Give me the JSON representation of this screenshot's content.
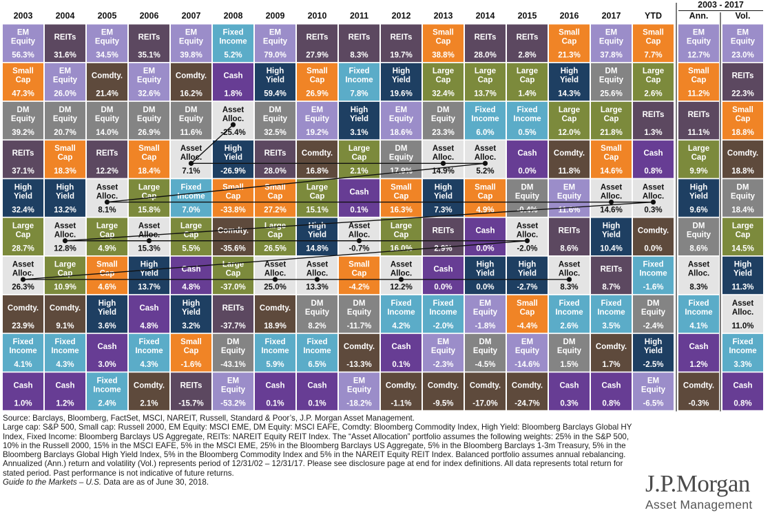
{
  "chart_data": {
    "type": "table",
    "columns": [
      "2003",
      "2004",
      "2005",
      "2006",
      "2007",
      "2008",
      "2009",
      "2010",
      "2011",
      "2012",
      "2013",
      "2014",
      "2015",
      "2016",
      "2017",
      "YTD"
    ],
    "summary_group_label": "2003 - 2017",
    "summary_columns": [
      "Ann.",
      "Vol."
    ],
    "asset_classes": {
      "EM": {
        "label": [
          "EM",
          "Equity"
        ],
        "color": "#9b8dc9"
      },
      "REIT": {
        "label": [
          "REITs"
        ],
        "color": "#5c4860"
      },
      "SC": {
        "label": [
          "Small",
          "Cap"
        ],
        "color": "#f08426"
      },
      "COM": {
        "label": [
          "Comdty."
        ],
        "color": "#5e4a3c"
      },
      "FI": {
        "label": [
          "Fixed",
          "Income"
        ],
        "color": "#5bacc8"
      },
      "CASH": {
        "label": [
          "Cash"
        ],
        "color": "#673d94"
      },
      "HY": {
        "label": [
          "High",
          "Yield"
        ],
        "color": "#1e3f62"
      },
      "DM": {
        "label": [
          "DM",
          "Equity"
        ],
        "color": "#848484"
      },
      "LC": {
        "label": [
          "Large",
          "Cap"
        ],
        "color": "#7c8a3c"
      },
      "AA": {
        "label": [
          "Asset",
          "Alloc."
        ],
        "color": "#e4e4e4"
      }
    },
    "rows": [
      [
        [
          "EM",
          "56.3%"
        ],
        [
          "REIT",
          "31.6%"
        ],
        [
          "EM",
          "34.5%"
        ],
        [
          "REIT",
          "35.1%"
        ],
        [
          "EM",
          "39.8%"
        ],
        [
          "FI",
          "5.2%"
        ],
        [
          "EM",
          "79.0%"
        ],
        [
          "REIT",
          "27.9%"
        ],
        [
          "REIT",
          "8.3%"
        ],
        [
          "REIT",
          "19.7%"
        ],
        [
          "SC",
          "38.8%"
        ],
        [
          "REIT",
          "28.0%"
        ],
        [
          "REIT",
          "2.8%"
        ],
        [
          "SC",
          "21.3%"
        ],
        [
          "EM",
          "37.8%"
        ],
        [
          "SC",
          "7.7%"
        ],
        [
          "EM",
          "12.7%"
        ],
        [
          "EM",
          "23.0%"
        ]
      ],
      [
        [
          "SC",
          "47.3%"
        ],
        [
          "EM",
          "26.0%"
        ],
        [
          "COM",
          "21.4%"
        ],
        [
          "EM",
          "32.6%"
        ],
        [
          "COM",
          "16.2%"
        ],
        [
          "CASH",
          "1.8%"
        ],
        [
          "HY",
          "59.4%"
        ],
        [
          "SC",
          "26.9%"
        ],
        [
          "FI",
          "7.8%"
        ],
        [
          "HY",
          "19.6%"
        ],
        [
          "LC",
          "32.4%"
        ],
        [
          "LC",
          "13.7%"
        ],
        [
          "LC",
          "1.4%"
        ],
        [
          "HY",
          "14.3%"
        ],
        [
          "DM",
          "25.6%"
        ],
        [
          "LC",
          "2.6%"
        ],
        [
          "SC",
          "11.2%"
        ],
        [
          "REIT",
          "22.3%"
        ]
      ],
      [
        [
          "DM",
          "39.2%"
        ],
        [
          "DM",
          "20.7%"
        ],
        [
          "DM",
          "14.0%"
        ],
        [
          "DM",
          "26.9%"
        ],
        [
          "DM",
          "11.6%"
        ],
        [
          "AA",
          "-25.4%"
        ],
        [
          "DM",
          "32.5%"
        ],
        [
          "EM",
          "19.2%"
        ],
        [
          "HY",
          "3.1%"
        ],
        [
          "EM",
          "18.6%"
        ],
        [
          "DM",
          "23.3%"
        ],
        [
          "FI",
          "6.0%"
        ],
        [
          "FI",
          "0.5%"
        ],
        [
          "LC",
          "12.0%"
        ],
        [
          "LC",
          "21.8%"
        ],
        [
          "REIT",
          "1.3%"
        ],
        [
          "REIT",
          "11.1%"
        ],
        [
          "SC",
          "18.8%"
        ]
      ],
      [
        [
          "REIT",
          "37.1%"
        ],
        [
          "SC",
          "18.3%"
        ],
        [
          "REIT",
          "12.2%"
        ],
        [
          "SC",
          "18.4%"
        ],
        [
          "AA",
          "7.1%"
        ],
        [
          "HY",
          "-26.9%"
        ],
        [
          "REIT",
          "28.0%"
        ],
        [
          "COM",
          "16.8%"
        ],
        [
          "LC",
          "2.1%"
        ],
        [
          "DM",
          "17.9%"
        ],
        [
          "AA",
          "14.9%"
        ],
        [
          "AA",
          "5.2%"
        ],
        [
          "CASH",
          "0.0%"
        ],
        [
          "COM",
          "11.8%"
        ],
        [
          "SC",
          "14.6%"
        ],
        [
          "CASH",
          "0.8%"
        ],
        [
          "LC",
          "9.9%"
        ],
        [
          "COM",
          "18.8%"
        ]
      ],
      [
        [
          "HY",
          "32.4%"
        ],
        [
          "HY",
          "13.2%"
        ],
        [
          "AA",
          "8.1%"
        ],
        [
          "LC",
          "15.8%"
        ],
        [
          "FI",
          "7.0%"
        ],
        [
          "SC",
          "-33.8%"
        ],
        [
          "SC",
          "27.2%"
        ],
        [
          "LC",
          "15.1%"
        ],
        [
          "CASH",
          "0.1%"
        ],
        [
          "SC",
          "16.3%"
        ],
        [
          "HY",
          "7.3%"
        ],
        [
          "SC",
          "4.9%"
        ],
        [
          "DM",
          "-0.4%"
        ],
        [
          "EM",
          "11.6%"
        ],
        [
          "AA",
          "14.6%"
        ],
        [
          "AA",
          "0.3%"
        ],
        [
          "HY",
          "9.6%"
        ],
        [
          "DM",
          "18.4%"
        ]
      ],
      [
        [
          "LC",
          "28.7%"
        ],
        [
          "AA",
          "12.8%"
        ],
        [
          "LC",
          "4.9%"
        ],
        [
          "AA",
          "15.3%"
        ],
        [
          "LC",
          "5.5%"
        ],
        [
          "COM",
          "-35.6%"
        ],
        [
          "LC",
          "26.5%"
        ],
        [
          "HY",
          "14.8%"
        ],
        [
          "AA",
          "-0.7%"
        ],
        [
          "LC",
          "16.0%"
        ],
        [
          "REIT",
          "2.9%"
        ],
        [
          "CASH",
          "0.0%"
        ],
        [
          "AA",
          "-2.0%"
        ],
        [
          "REIT",
          "8.6%"
        ],
        [
          "HY",
          "10.4%"
        ],
        [
          "COM",
          "0.0%"
        ],
        [
          "DM",
          "8.6%"
        ],
        [
          "LC",
          "14.5%"
        ]
      ],
      [
        [
          "AA",
          "26.3%"
        ],
        [
          "LC",
          "10.9%"
        ],
        [
          "SC",
          "4.6%"
        ],
        [
          "HY",
          "13.7%"
        ],
        [
          "CASH",
          "4.8%"
        ],
        [
          "LC",
          "-37.0%"
        ],
        [
          "AA",
          "25.0%"
        ],
        [
          "AA",
          "13.3%"
        ],
        [
          "SC",
          "-4.2%"
        ],
        [
          "AA",
          "12.2%"
        ],
        [
          "CASH",
          "0.0%"
        ],
        [
          "HY",
          "0.0%"
        ],
        [
          "HY",
          "-2.7%"
        ],
        [
          "AA",
          "8.3%"
        ],
        [
          "REIT",
          "8.7%"
        ],
        [
          "FI",
          "-1.6%"
        ],
        [
          "AA",
          "8.3%"
        ],
        [
          "HY",
          "11.3%"
        ]
      ],
      [
        [
          "COM",
          "23.9%"
        ],
        [
          "COM",
          "9.1%"
        ],
        [
          "HY",
          "3.6%"
        ],
        [
          "CASH",
          "4.8%"
        ],
        [
          "HY",
          "3.2%"
        ],
        [
          "REIT",
          "-37.7%"
        ],
        [
          "COM",
          "18.9%"
        ],
        [
          "DM",
          "8.2%"
        ],
        [
          "DM",
          "-11.7%"
        ],
        [
          "FI",
          "4.2%"
        ],
        [
          "FI",
          "-2.0%"
        ],
        [
          "EM",
          "-1.8%"
        ],
        [
          "SC",
          "-4.4%"
        ],
        [
          "FI",
          "2.6%"
        ],
        [
          "FI",
          "3.5%"
        ],
        [
          "DM",
          "-2.4%"
        ],
        [
          "FI",
          "4.1%"
        ],
        [
          "AA",
          "11.0%"
        ]
      ],
      [
        [
          "FI",
          "4.1%"
        ],
        [
          "FI",
          "4.3%"
        ],
        [
          "CASH",
          "3.0%"
        ],
        [
          "FI",
          "4.3%"
        ],
        [
          "SC",
          "-1.6%"
        ],
        [
          "DM",
          "-43.1%"
        ],
        [
          "FI",
          "5.9%"
        ],
        [
          "FI",
          "6.5%"
        ],
        [
          "COM",
          "-13.3%"
        ],
        [
          "CASH",
          "0.1%"
        ],
        [
          "EM",
          "-2.3%"
        ],
        [
          "DM",
          "-4.5%"
        ],
        [
          "EM",
          "-14.6%"
        ],
        [
          "DM",
          "1.5%"
        ],
        [
          "COM",
          "1.7%"
        ],
        [
          "HY",
          "-2.5%"
        ],
        [
          "CASH",
          "1.2%"
        ],
        [
          "FI",
          "3.3%"
        ]
      ],
      [
        [
          "CASH",
          "1.0%"
        ],
        [
          "CASH",
          "1.2%"
        ],
        [
          "FI",
          "2.4%"
        ],
        [
          "COM",
          "2.1%"
        ],
        [
          "REIT",
          "-15.7%"
        ],
        [
          "EM",
          "-53.2%"
        ],
        [
          "CASH",
          "0.1%"
        ],
        [
          "CASH",
          "0.1%"
        ],
        [
          "EM",
          "-18.2%"
        ],
        [
          "COM",
          "-1.1%"
        ],
        [
          "COM",
          "-9.5%"
        ],
        [
          "COM",
          "-17.0%"
        ],
        [
          "COM",
          "-24.7%"
        ],
        [
          "CASH",
          "0.3%"
        ],
        [
          "CASH",
          "0.8%"
        ],
        [
          "EM",
          "-6.5%"
        ],
        [
          "COM",
          "-0.3%"
        ],
        [
          "CASH",
          "0.8%"
        ]
      ]
    ],
    "asset_alloc_line": {
      "color": "#111111",
      "connects": "Asset Alloc. cell in each column 2003 through YTD"
    }
  },
  "footnote": {
    "lines": [
      "Source: Barclays, Bloomberg, FactSet, MSCI, NAREIT, Russell, Standard & Poor’s, J.P. Morgan Asset Management.",
      "Large cap: S&P 500, Small cap: Russell 2000, EM Equity: MSCI EME, DM Equity: MSCI EAFE, Comdty: Bloomberg Commodity Index, High Yield: Bloomberg Barclays Global HY Index, Fixed Income: Bloomberg Barclays US Aggregate, REITs: NAREIT Equity REIT Index. The “Asset Allocation” portfolio assumes the following weights: 25% in the S&P 500, 10% in the Russell 2000, 15% in the MSCI EAFE, 5% in the MSCI EME, 25% in the Bloomberg Barclays US Aggregate, 5% in the Bloomberg Barclays 1-3m Treasury, 5% in the Bloomberg Barclays Global High Yield Index, 5% in the Bloomberg Commodity Index and 5% in the NAREIT Equity REIT Index. Balanced portfolio assumes annual rebalancing. Annualized (Ann.) return and volatility (Vol.) represents period of 12/31/02 – 12/31/17. Please see disclosure page at end for index definitions. All data represents total return for stated period. Past performance is not indicative of future returns."
    ],
    "guide": "Guide to the Markets – U.S.",
    "guide_rest": " Data are as of June 30, 2018."
  },
  "logo": {
    "brand": "J.P.Morgan",
    "sub": "Asset Management"
  }
}
